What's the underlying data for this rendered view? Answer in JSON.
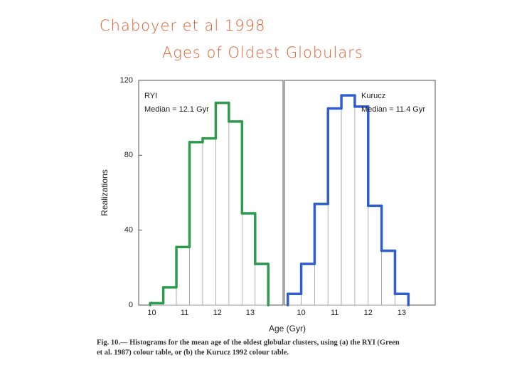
{
  "handwritten": [
    "Chaboyer et al 1998",
    "Ages of Oldest Globulars"
  ],
  "x_label": "Age (Gyr)",
  "caption": [
    "Fig. 10.— Histograms for the mean age of the oldest globular clusters, using (a) the RYI (Green",
    "et al. 1987) colour table, or (b) the Kurucz 1992 colour table."
  ],
  "chart_data": [
    {
      "type": "histogram",
      "annotations": [
        "RYI",
        "Median = 12.1 Gyr"
      ],
      "y_label": "Realizations",
      "bins": [
        9.95,
        10.35,
        10.75,
        11.15,
        11.55,
        11.95,
        12.35,
        12.75,
        13.15,
        13.55
      ],
      "values": [
        1,
        9.5,
        31,
        87,
        89,
        108,
        98,
        49,
        22
      ],
      "color": "#2e9a4e",
      "xlim": [
        9.6,
        14.0
      ],
      "xticks": [
        10,
        11,
        12,
        13
      ],
      "ylim": [
        0,
        120
      ],
      "yticks": [
        0,
        40,
        80,
        120
      ]
    },
    {
      "type": "histogram",
      "annotations": [
        "Kurucz",
        "Median = 11.4 Gyr"
      ],
      "bins": [
        9.6,
        10.0,
        10.4,
        10.8,
        11.2,
        11.6,
        12.0,
        12.4,
        12.8,
        13.2
      ],
      "values": [
        6,
        22,
        54,
        105,
        112,
        106,
        53,
        29,
        6
      ],
      "color": "#2f5fcf",
      "xlim": [
        9.5,
        14.0
      ],
      "xticks": [
        10,
        11,
        12,
        13
      ],
      "ylim": [
        0,
        120
      ]
    }
  ]
}
